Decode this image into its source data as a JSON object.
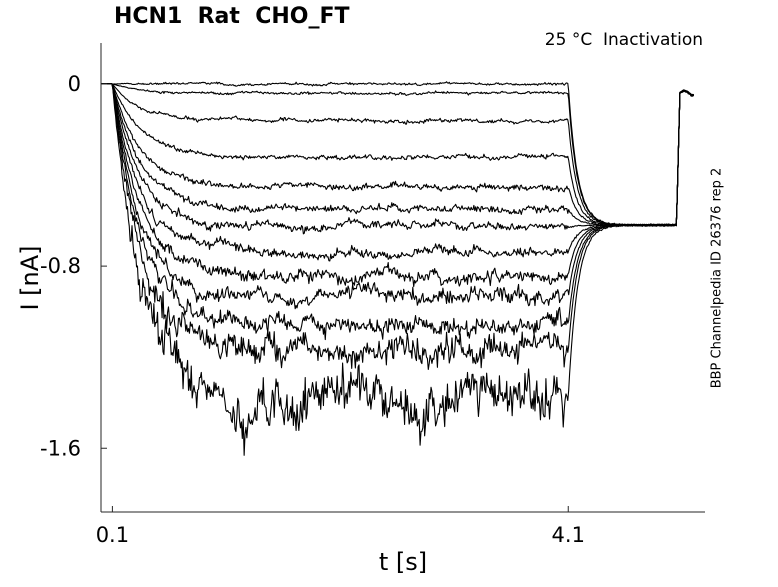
{
  "chart_data": {
    "type": "line",
    "title": "HCN1  Rat  CHO_FT",
    "subtitle": "25 °C  Inactivation",
    "side_label": "BBP Channelpedia ID 26376 rep 2",
    "xlabel": "t [s]",
    "ylabel": "I [nA]",
    "xlim": [
      0.0,
      5.3
    ],
    "ylim": [
      -1.88,
      0.18
    ],
    "x_ticks": [
      0.1,
      4.1
    ],
    "x_tick_labels": [
      "0.1",
      "4.1"
    ],
    "y_ticks": [
      0,
      -0.8,
      -1.6
    ],
    "y_tick_labels": [
      "0",
      "-0.8",
      "-1.6"
    ],
    "grid": false,
    "legend": "none",
    "line_color": "#000000",
    "protocol": {
      "step_start_s": 0.1,
      "step_end_s": 4.1,
      "activation_tau_s": 0.25,
      "tail_decay_tau_s": 0.08,
      "tail_current_nA": -0.62,
      "trace_end_s": 5.2
    },
    "series": [
      {
        "steady_state_nA": 0.0,
        "noise_nA": 0.004
      },
      {
        "steady_state_nA": -0.04,
        "noise_nA": 0.004
      },
      {
        "steady_state_nA": -0.16,
        "noise_nA": 0.006
      },
      {
        "steady_state_nA": -0.32,
        "noise_nA": 0.008
      },
      {
        "steady_state_nA": -0.45,
        "noise_nA": 0.01
      },
      {
        "steady_state_nA": -0.55,
        "noise_nA": 0.012
      },
      {
        "steady_state_nA": -0.63,
        "noise_nA": 0.014
      },
      {
        "steady_state_nA": -0.74,
        "noise_nA": 0.016
      },
      {
        "steady_state_nA": -0.84,
        "noise_nA": 0.02
      },
      {
        "steady_state_nA": -0.94,
        "noise_nA": 0.024
      },
      {
        "steady_state_nA": -1.06,
        "noise_nA": 0.03
      },
      {
        "steady_state_nA": -1.18,
        "noise_nA": 0.045
      },
      {
        "steady_state_nA": -1.38,
        "noise_nA": 0.075
      }
    ]
  }
}
